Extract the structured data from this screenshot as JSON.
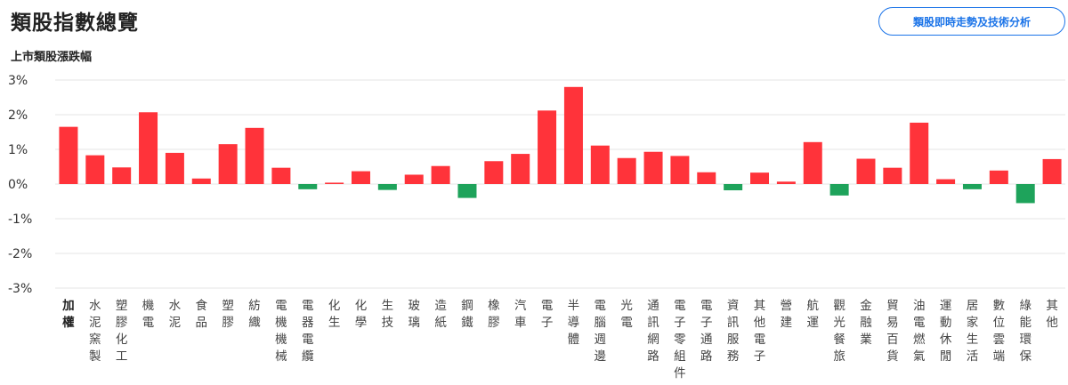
{
  "header": {
    "title": "類股指數總覽",
    "button_label": "類股即時走勢及技術分析"
  },
  "colors": {
    "up": "#ff333a",
    "down": "#1ea35b",
    "accent": "#1a73e8",
    "grid": "#e6e6e6"
  },
  "chart_data": {
    "type": "bar",
    "title": "上市類股漲跌幅",
    "ylim": [
      -3,
      3
    ],
    "yticks": [
      "3%",
      "2%",
      "1%",
      "0%",
      "-1%",
      "-2%",
      "-3%"
    ],
    "grid": true,
    "active_category_index": 0,
    "categories": [
      "加權",
      "水泥窯製",
      "塑膠化工",
      "機電",
      "水泥",
      "食品",
      "塑膠",
      "紡織",
      "電機機械",
      "電器電纜",
      "化生",
      "化學",
      "生技",
      "玻璃",
      "造紙",
      "鋼鐵",
      "橡膠",
      "汽車",
      "電子",
      "半導體",
      "電腦週邊",
      "光電",
      "通訊網路",
      "電子零組件",
      "電子通路",
      "資訊服務",
      "其他電子",
      "營建",
      "航運",
      "觀光餐旅",
      "金融業",
      "貿易百貨",
      "油電燃氣",
      "運動休閒",
      "居家生活",
      "數位雲端",
      "綠能環保",
      "其他"
    ],
    "values": [
      1.65,
      0.83,
      0.48,
      2.07,
      0.9,
      0.16,
      1.15,
      1.62,
      0.47,
      -0.15,
      0.04,
      0.37,
      -0.17,
      0.27,
      0.52,
      -0.4,
      0.66,
      0.87,
      2.12,
      2.8,
      1.11,
      0.75,
      0.93,
      0.81,
      0.34,
      -0.18,
      0.33,
      0.07,
      1.21,
      -0.33,
      0.73,
      0.47,
      1.77,
      0.14,
      -0.15,
      0.39,
      -0.55,
      0.72
    ]
  }
}
